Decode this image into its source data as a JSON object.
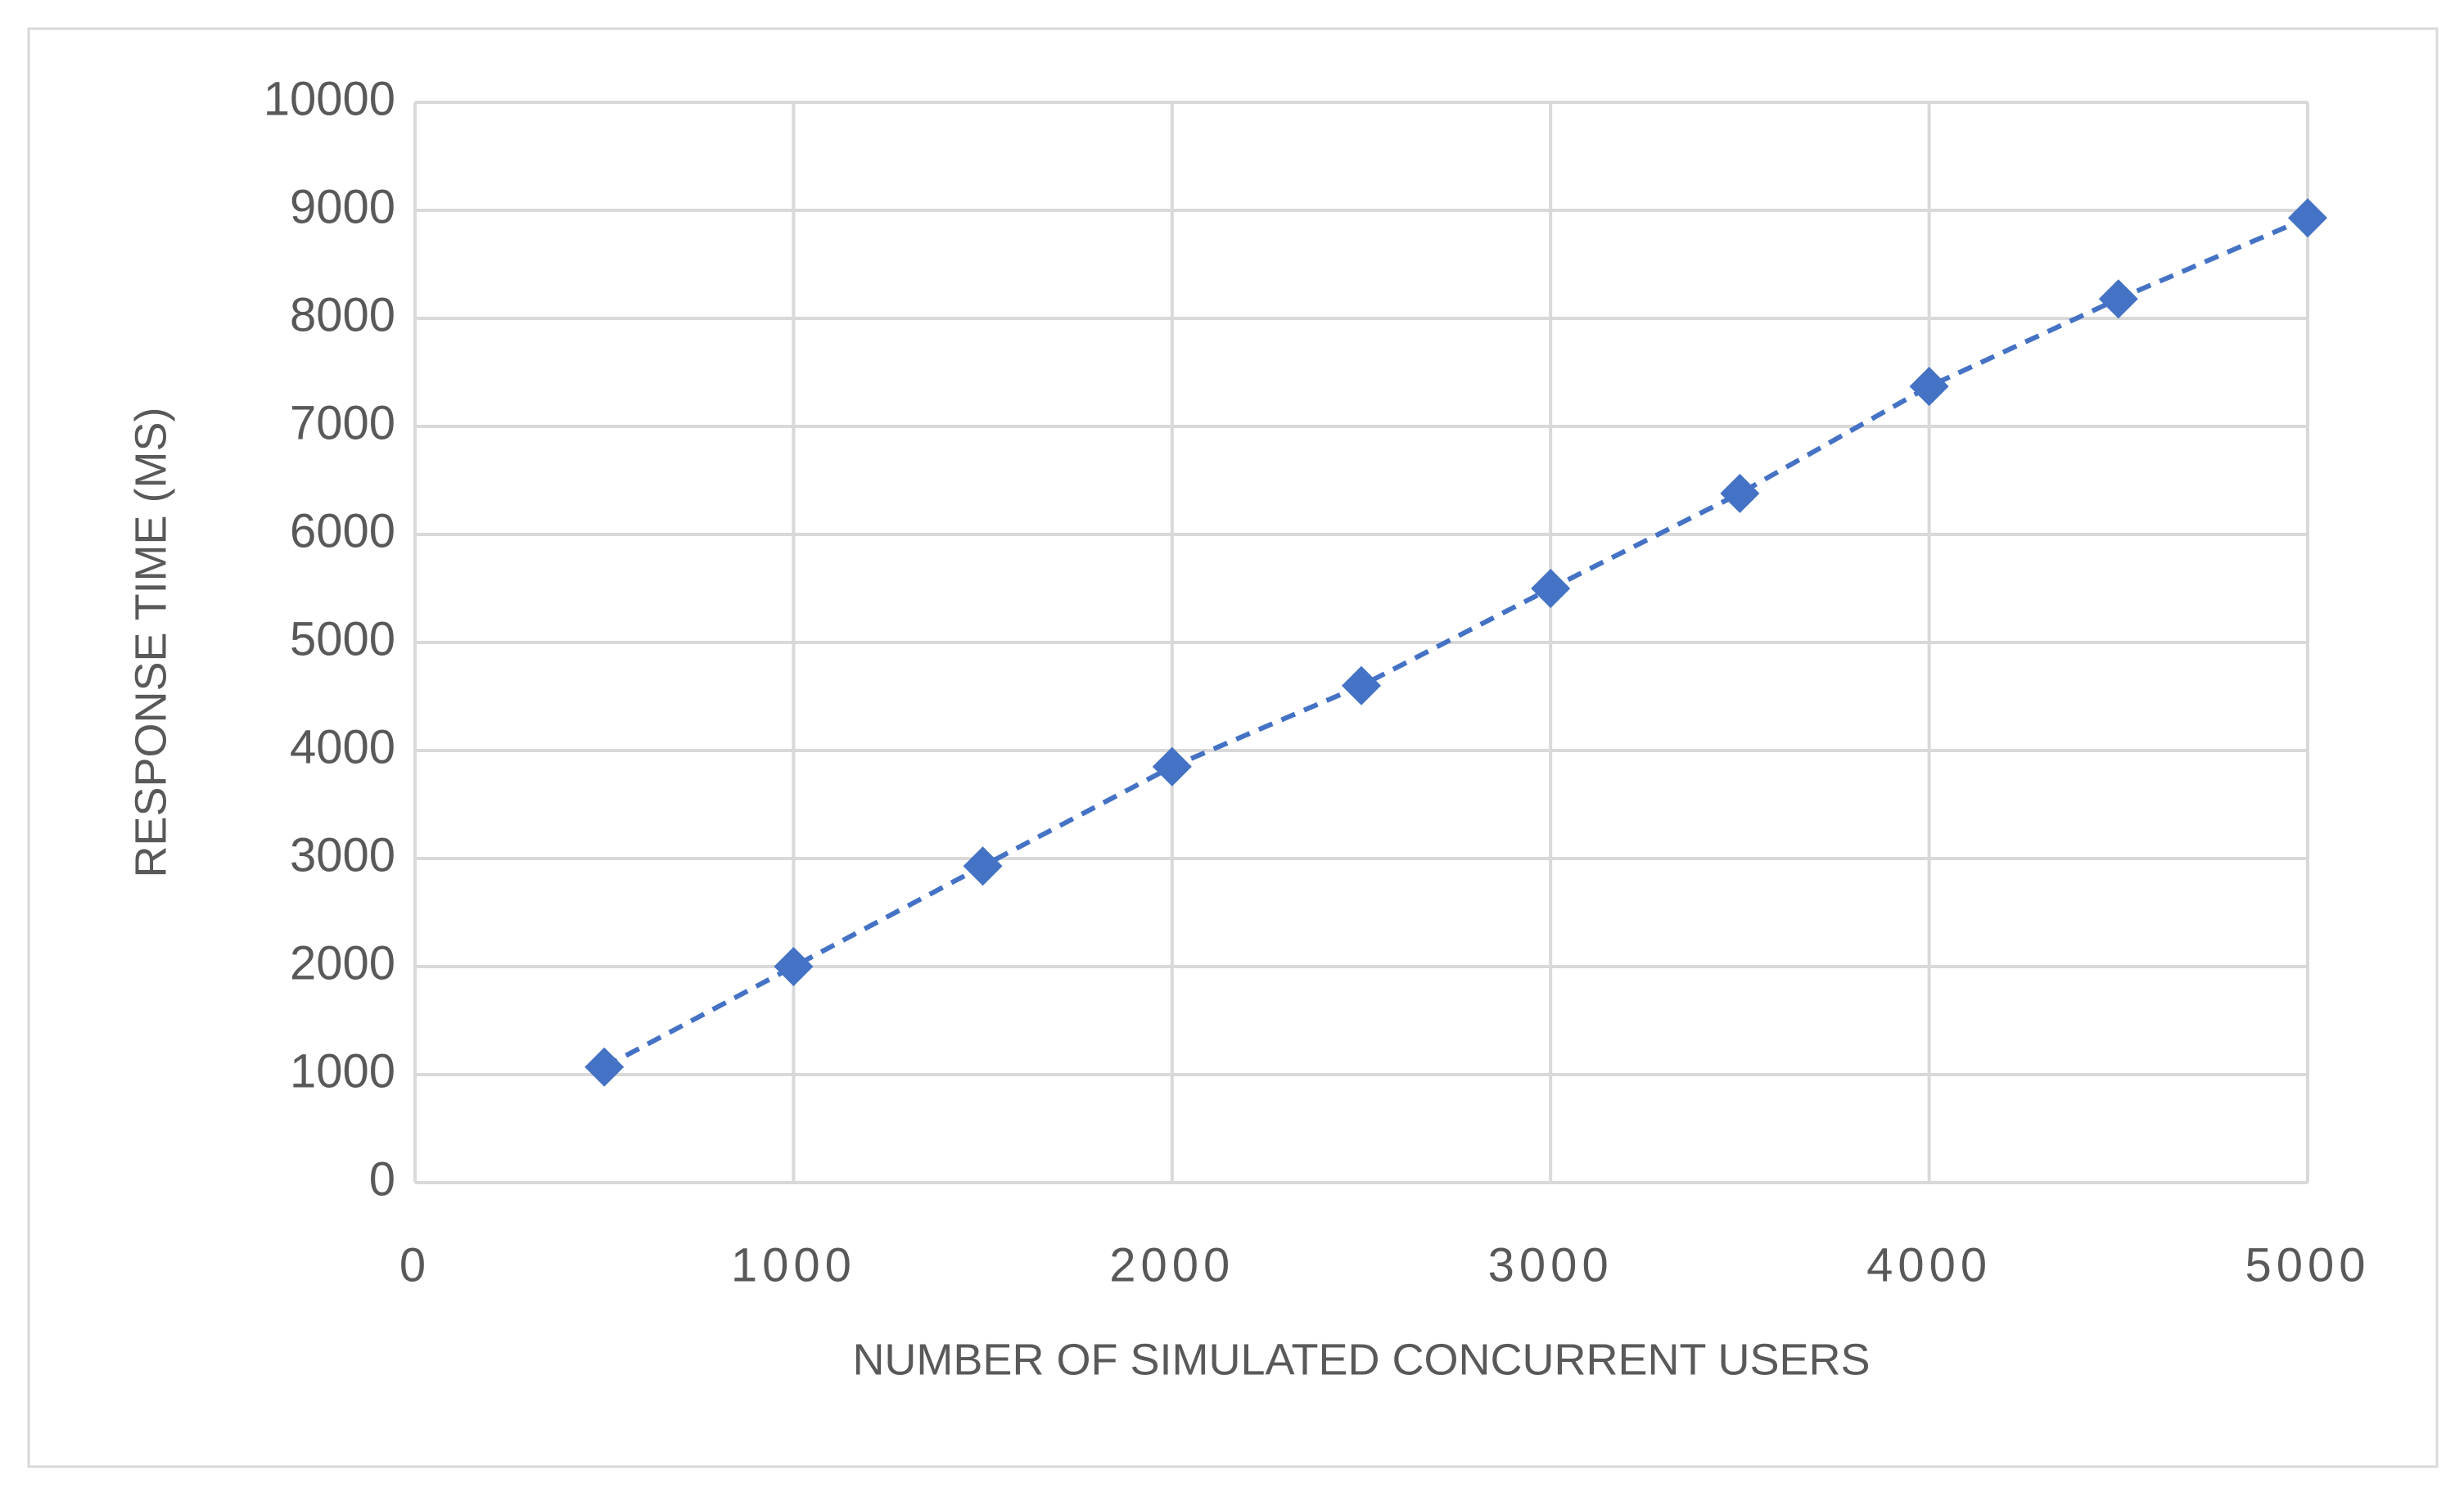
{
  "chart_data": {
    "type": "scatter",
    "x_label": "NUMBER OF SIMULATED CONCURRENT USERS",
    "y_label": "RESPONSE TIME (MS)",
    "x": [
      500,
      1000,
      1500,
      2000,
      2500,
      3000,
      3500,
      4000,
      4500,
      5000
    ],
    "series": [
      {
        "name": "Response time",
        "color": "#4472c4",
        "values": [
          1070,
          2000,
          2930,
          3850,
          4600,
          5500,
          6380,
          7370,
          8180,
          8930
        ]
      }
    ],
    "xlim": [
      0,
      5000
    ],
    "xticks": [
      0,
      1000,
      2000,
      3000,
      4000,
      5000
    ],
    "ylim": [
      0,
      10000
    ],
    "yticks": [
      0,
      1000,
      2000,
      3000,
      4000,
      5000,
      6000,
      7000,
      8000,
      9000,
      10000
    ],
    "grid": true,
    "line": "dashed",
    "marker": "diamond"
  }
}
